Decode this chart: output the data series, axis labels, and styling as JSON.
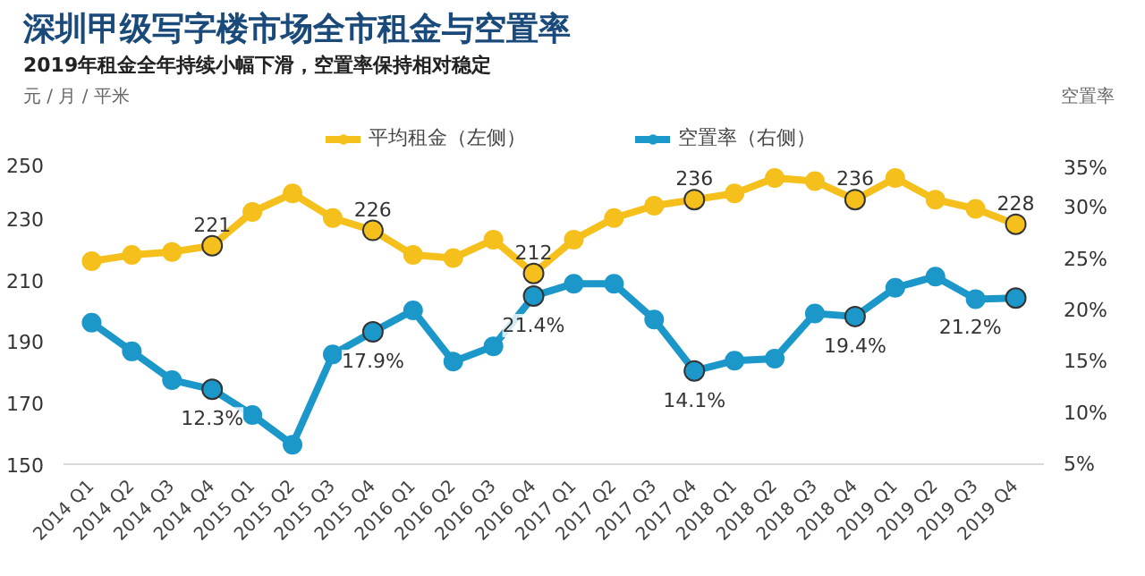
{
  "chart_data": {
    "type": "line",
    "title": "深圳甲级写字楼市场全市租金与空置率",
    "subtitle": "2019年租金全年持续小幅下滑，空置率保持相对稳定",
    "ylabel": "元 / 月 / 平米",
    "y2label": "空置率",
    "categories": [
      "2014 Q1",
      "2014 Q2",
      "2014 Q3",
      "2014 Q4",
      "2015 Q1",
      "2015 Q2",
      "2015 Q3",
      "2015 Q4",
      "2016 Q1",
      "2016 Q2",
      "2016 Q3",
      "2016 Q4",
      "2017 Q1",
      "2017 Q2",
      "2017 Q3",
      "2017 Q4",
      "2018 Q1",
      "2018 Q2",
      "2018 Q3",
      "2018 Q4",
      "2019 Q1",
      "2019 Q2",
      "2019 Q3",
      "2019 Q4"
    ],
    "series": [
      {
        "name": "平均租金（左侧）",
        "color": "#f5c01c",
        "values": [
          216,
          218,
          219,
          221,
          232,
          238,
          230,
          226,
          218,
          217,
          223,
          212,
          223,
          230,
          234,
          236,
          238,
          243,
          242,
          236,
          243,
          236,
          233,
          228
        ],
        "value_labels": [
          null,
          null,
          null,
          "221",
          null,
          null,
          null,
          "226",
          null,
          null,
          null,
          "212",
          null,
          null,
          null,
          "236",
          null,
          null,
          null,
          "236",
          null,
          null,
          null,
          "228"
        ]
      },
      {
        "name": "空置率（右侧）",
        "color": "#1c97c9",
        "axis": "y2",
        "values": [
          18.8,
          16.0,
          13.2,
          12.3,
          9.8,
          6.9,
          15.7,
          17.9,
          20.0,
          15.0,
          16.5,
          21.4,
          22.6,
          22.6,
          19.1,
          14.1,
          15.1,
          15.3,
          19.7,
          19.4,
          22.2,
          23.3,
          21.1,
          21.2
        ],
        "value_labels": [
          null,
          null,
          null,
          "12.3%",
          null,
          null,
          null,
          "17.9%",
          null,
          null,
          null,
          "21.4%",
          null,
          null,
          null,
          "14.1%",
          null,
          null,
          null,
          "19.4%",
          null,
          null,
          null,
          "21.2%"
        ]
      }
    ],
    "ylim": [
      150,
      250
    ],
    "yticks": [
      150,
      170,
      190,
      210,
      230,
      250
    ],
    "y2lim": [
      5,
      35
    ],
    "y2ticks": [
      {
        "value": 5,
        "label": "5%"
      },
      {
        "value": 10,
        "label": "10%"
      },
      {
        "value": 15,
        "label": "15%"
      },
      {
        "value": 20,
        "label": "20%"
      },
      {
        "value": 25,
        "label": "25%"
      },
      {
        "value": 30,
        "label": "30%"
      },
      {
        "value": 35,
        "label": "35%"
      }
    ],
    "marker": "circle",
    "grid": false,
    "legend": "top"
  }
}
